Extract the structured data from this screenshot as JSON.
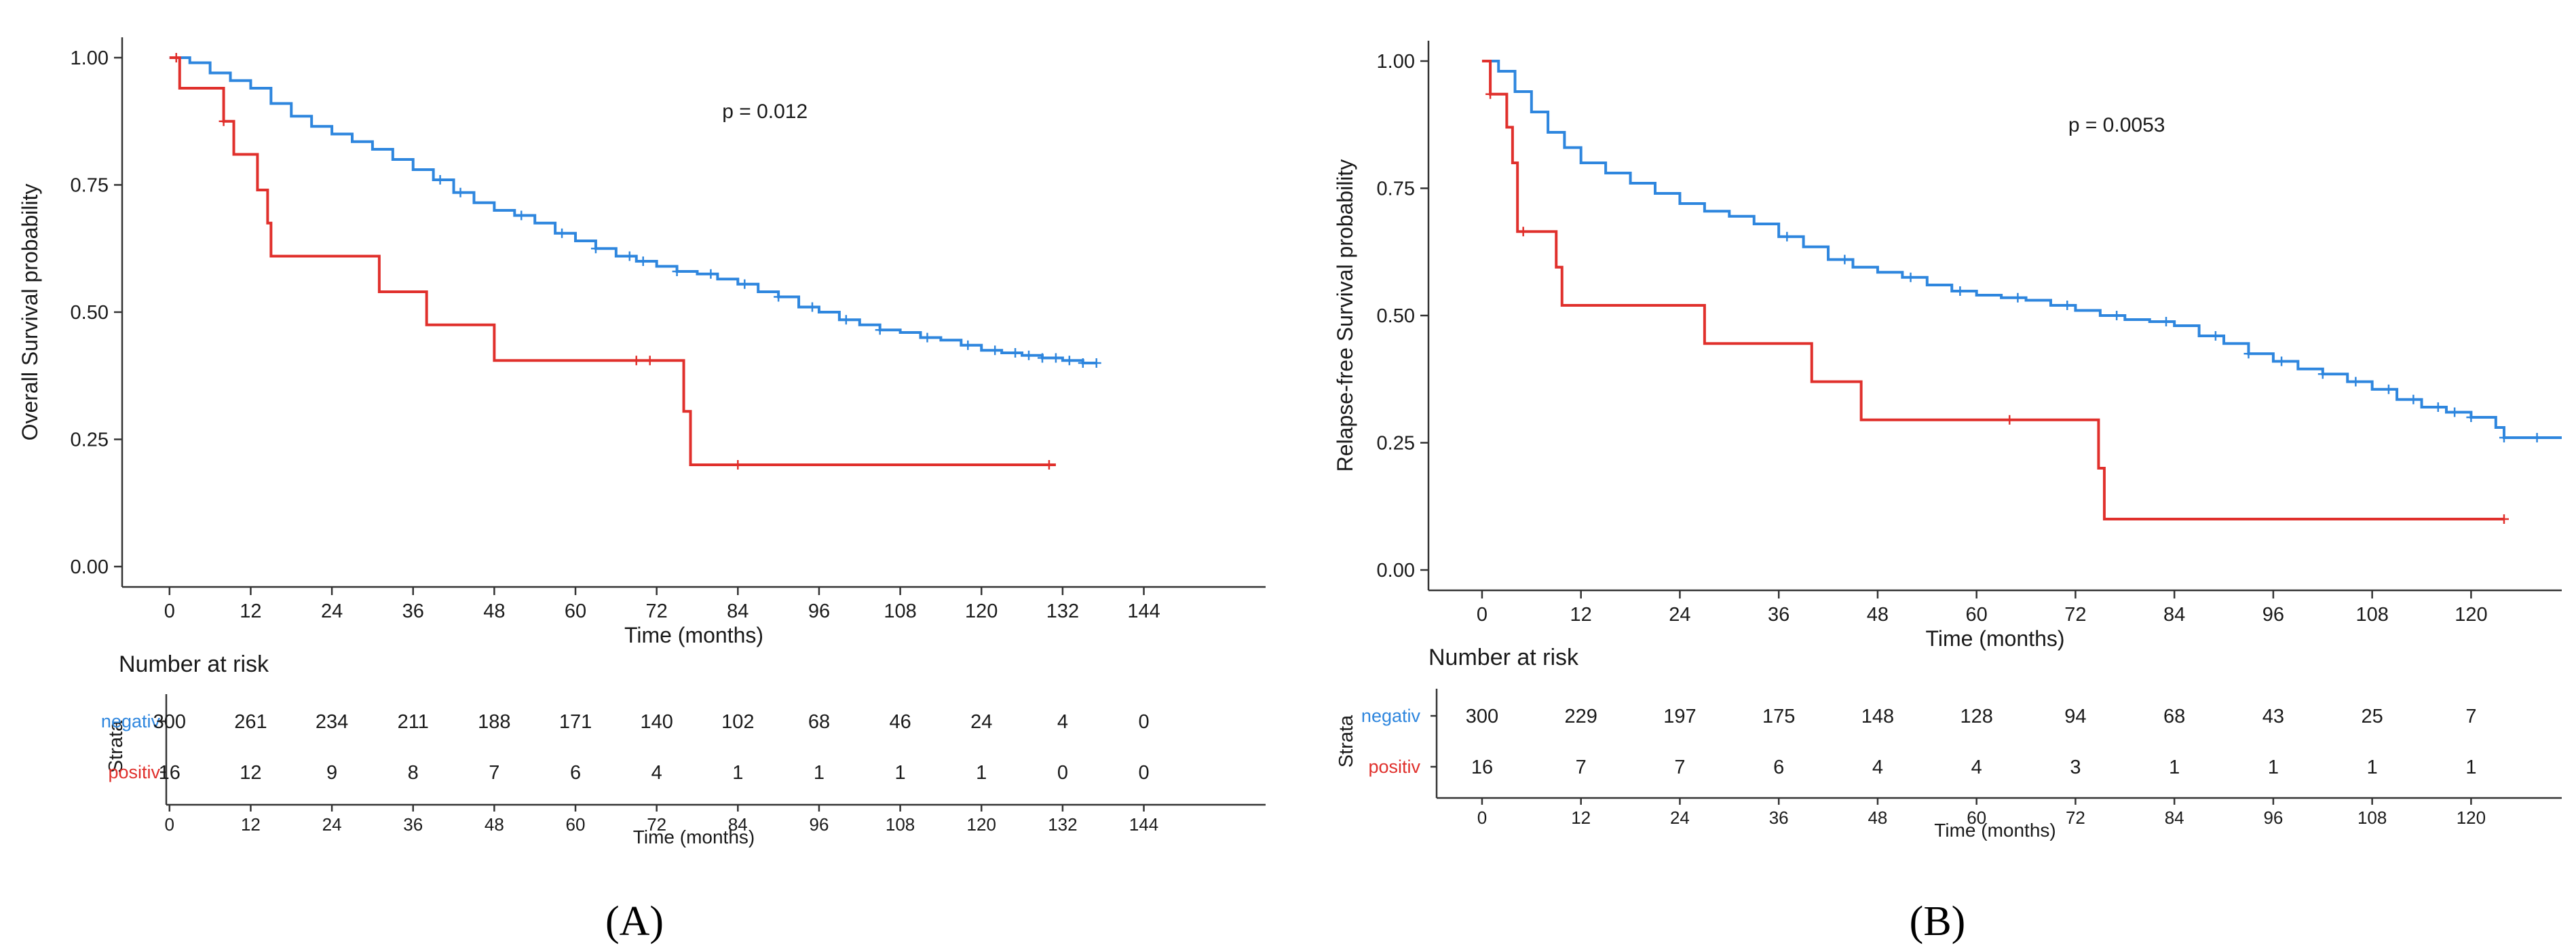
{
  "colors": {
    "negativ": "#2e86de",
    "positiv": "#e0302c",
    "axis": "#333333",
    "text": "#1a1a1a"
  },
  "chart_data": [
    {
      "type": "line",
      "panel_label": "A",
      "ylabel": "Overall Survival probability",
      "xlabel": "Time (months)",
      "xlim": [
        -7,
        162
      ],
      "ylim": [
        -0.04,
        1.04
      ],
      "xticks": [
        0,
        12,
        24,
        36,
        48,
        60,
        72,
        84,
        96,
        108,
        120,
        132,
        144
      ],
      "yticks": [
        0.0,
        0.25,
        0.5,
        0.75,
        1.0
      ],
      "ytick_labels": [
        "0.00",
        "0.25",
        "0.50",
        "0.75",
        "1.00"
      ],
      "pvalue_text": "p = 0.012",
      "pvalue_at": [
        88,
        0.895
      ],
      "series": [
        {
          "name": "negativ",
          "color": "#2e86de",
          "x": [
            0,
            3,
            6,
            9,
            12,
            15,
            18,
            21,
            24,
            27,
            30,
            33,
            36,
            39,
            42,
            45,
            48,
            51,
            54,
            57,
            60,
            63,
            66,
            69,
            72,
            75,
            78,
            81,
            84,
            87,
            90,
            93,
            96,
            99,
            102,
            105,
            108,
            111,
            114,
            117,
            120,
            123,
            126,
            129,
            132,
            135,
            137
          ],
          "y": [
            1.0,
            0.99,
            0.97,
            0.955,
            0.94,
            0.91,
            0.885,
            0.865,
            0.85,
            0.835,
            0.82,
            0.8,
            0.78,
            0.76,
            0.735,
            0.715,
            0.7,
            0.69,
            0.675,
            0.655,
            0.64,
            0.625,
            0.61,
            0.6,
            0.59,
            0.58,
            0.575,
            0.565,
            0.555,
            0.54,
            0.53,
            0.51,
            0.5,
            0.485,
            0.475,
            0.465,
            0.46,
            0.45,
            0.445,
            0.435,
            0.425,
            0.42,
            0.415,
            0.41,
            0.405,
            0.4,
            0.4
          ],
          "censor_x": [
            40,
            43,
            52,
            58,
            63,
            68,
            70,
            75,
            80,
            85,
            90,
            95,
            100,
            105,
            112,
            118,
            122,
            125,
            127,
            129,
            131,
            133,
            135,
            137
          ]
        },
        {
          "name": "positiv",
          "color": "#e0302c",
          "x": [
            0,
            1.5,
            8,
            9.5,
            13,
            14.5,
            15,
            31,
            38,
            48,
            76,
            77,
            131
          ],
          "y": [
            1.0,
            0.94,
            0.875,
            0.81,
            0.74,
            0.675,
            0.61,
            0.54,
            0.475,
            0.405,
            0.305,
            0.2,
            0.2
          ],
          "censor_x": [
            1,
            8,
            69,
            71,
            84,
            130
          ]
        }
      ],
      "risk_table": {
        "title": "Number at risk",
        "strata_label": "Strata",
        "xlabel": "Time (months)",
        "times": [
          0,
          12,
          24,
          36,
          48,
          60,
          72,
          84,
          96,
          108,
          120,
          132,
          144
        ],
        "rows": [
          {
            "name": "negativ",
            "color": "#2e86de",
            "values": [
              300,
              261,
              234,
              211,
              188,
              171,
              140,
              102,
              68,
              46,
              24,
              4,
              0
            ]
          },
          {
            "name": "positiv",
            "color": "#e0302c",
            "values": [
              16,
              12,
              9,
              8,
              7,
              6,
              4,
              1,
              1,
              1,
              1,
              0,
              0
            ]
          }
        ]
      }
    },
    {
      "type": "line",
      "panel_label": "B",
      "ylabel": "Relapse-free Survival probability",
      "xlabel": "Time (months)",
      "xlim": [
        -6.5,
        131
      ],
      "ylim": [
        -0.04,
        1.04
      ],
      "xticks": [
        0,
        12,
        24,
        36,
        48,
        60,
        72,
        84,
        96,
        108,
        120
      ],
      "yticks": [
        0.0,
        0.25,
        0.5,
        0.75,
        1.0
      ],
      "ytick_labels": [
        "0.00",
        "0.25",
        "0.50",
        "0.75",
        "1.00"
      ],
      "pvalue_text": "p = 0.0053",
      "pvalue_at": [
        77,
        0.875
      ],
      "series": [
        {
          "name": "negativ",
          "color": "#2e86de",
          "x": [
            0,
            2,
            4,
            6,
            8,
            10,
            12,
            15,
            18,
            21,
            24,
            27,
            30,
            33,
            36,
            39,
            42,
            45,
            48,
            51,
            54,
            57,
            60,
            63,
            66,
            69,
            72,
            75,
            78,
            81,
            84,
            87,
            90,
            93,
            96,
            99,
            102,
            105,
            108,
            111,
            114,
            117,
            120,
            123,
            124,
            131
          ],
          "y": [
            1.0,
            0.98,
            0.94,
            0.9,
            0.86,
            0.83,
            0.8,
            0.78,
            0.76,
            0.74,
            0.72,
            0.705,
            0.695,
            0.68,
            0.655,
            0.635,
            0.61,
            0.595,
            0.585,
            0.575,
            0.56,
            0.548,
            0.54,
            0.535,
            0.53,
            0.52,
            0.51,
            0.5,
            0.492,
            0.488,
            0.48,
            0.46,
            0.445,
            0.425,
            0.41,
            0.395,
            0.385,
            0.37,
            0.355,
            0.335,
            0.32,
            0.31,
            0.3,
            0.28,
            0.26,
            0.26
          ],
          "censor_x": [
            37,
            44,
            52,
            58,
            65,
            71,
            77,
            83,
            89,
            93,
            97,
            102,
            106,
            110,
            113,
            116,
            118,
            120,
            124,
            128
          ]
        },
        {
          "name": "positiv",
          "color": "#e0302c",
          "x": [
            0,
            1,
            3,
            3.7,
            4.3,
            9,
            9.7,
            27,
            40,
            46,
            74,
            74.8,
            75.5,
            124
          ],
          "y": [
            1.0,
            0.935,
            0.87,
            0.8,
            0.665,
            0.595,
            0.52,
            0.445,
            0.37,
            0.295,
            0.295,
            0.2,
            0.1,
            0.1
          ],
          "censor_x": [
            1,
            5,
            64,
            124
          ]
        }
      ],
      "risk_table": {
        "title": "Number at risk",
        "strata_label": "Strata",
        "xlabel": "Time (months)",
        "times": [
          0,
          12,
          24,
          36,
          48,
          60,
          72,
          84,
          96,
          108,
          120
        ],
        "rows": [
          {
            "name": "negativ",
            "color": "#2e86de",
            "values": [
              300,
              229,
              197,
              175,
              148,
              128,
              94,
              68,
              43,
              25,
              7
            ]
          },
          {
            "name": "positiv",
            "color": "#e0302c",
            "values": [
              16,
              7,
              7,
              6,
              4,
              4,
              3,
              1,
              1,
              1,
              1
            ]
          }
        ]
      }
    }
  ],
  "captions": [
    "(A)",
    "(B)"
  ]
}
